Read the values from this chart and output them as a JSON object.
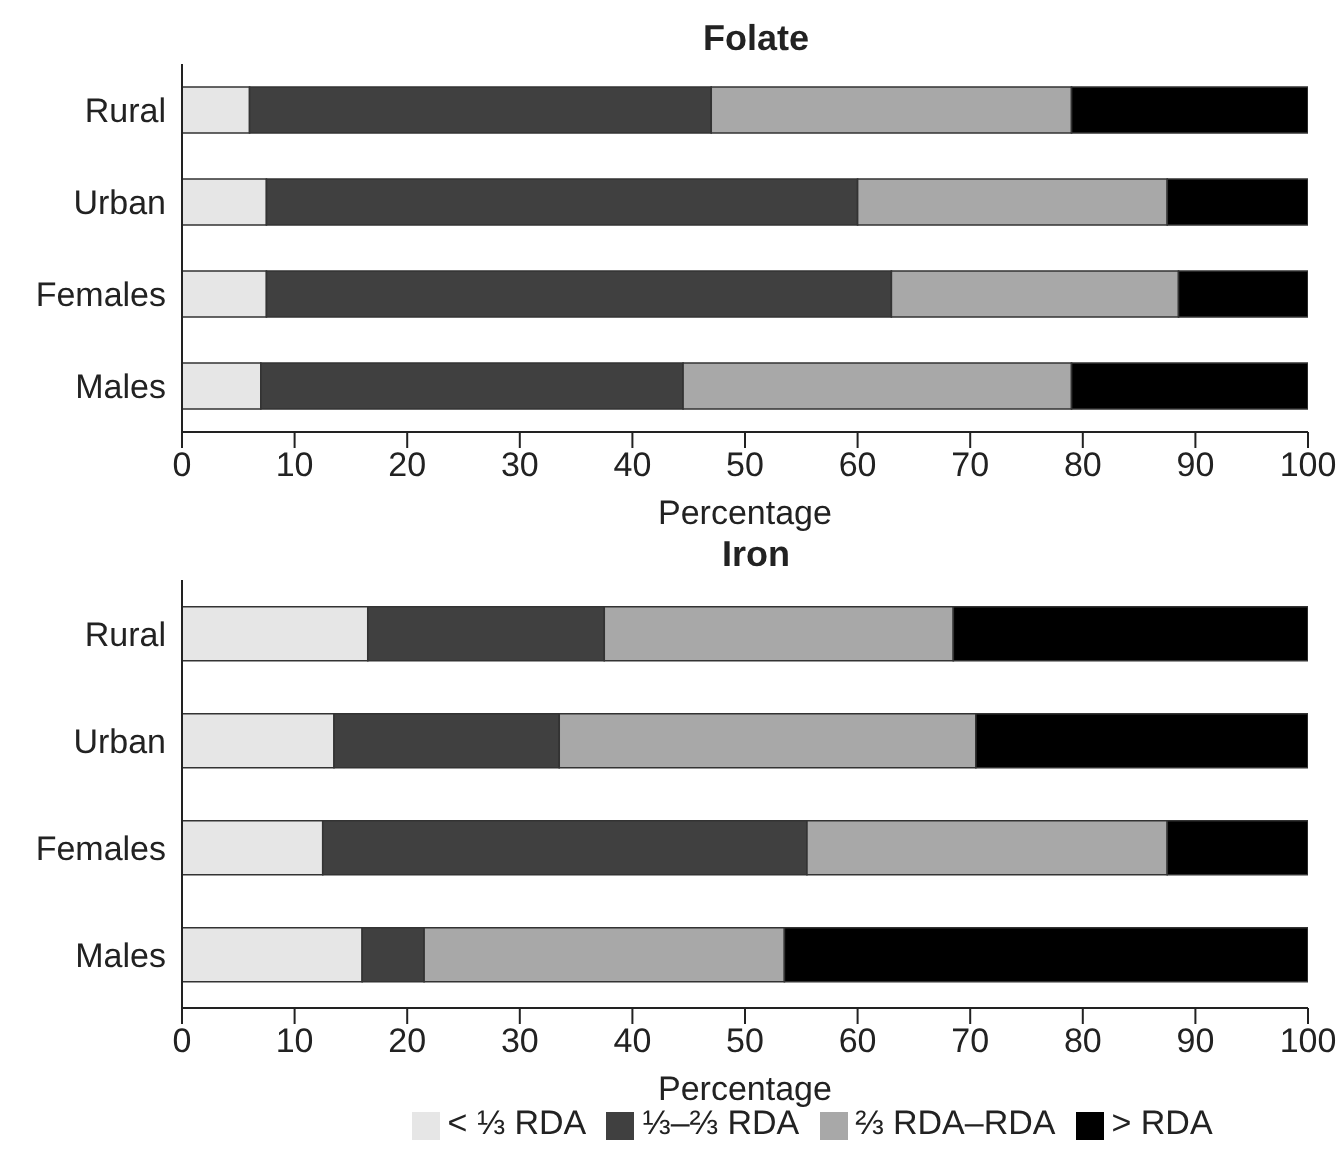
{
  "chart_data": [
    {
      "type": "bar",
      "title": "Folate",
      "xlabel": "Percentage",
      "orientation": "horizontal",
      "stacked": true,
      "categories": [
        "Rural",
        "Urban",
        "Females",
        "Males"
      ],
      "xlim": [
        0,
        100
      ],
      "xticks": [
        0,
        10,
        20,
        30,
        40,
        50,
        60,
        70,
        80,
        90,
        100
      ],
      "grid": false,
      "legend": false,
      "series": [
        {
          "color": "#e6e6e6",
          "values": [
            6,
            7.5,
            7.5,
            7
          ]
        },
        {
          "color": "#404040",
          "values": [
            41,
            52.5,
            55.5,
            37.5
          ]
        },
        {
          "color": "#a8a8a8",
          "values": [
            32,
            27.5,
            25.5,
            34.5
          ]
        },
        {
          "color": "#000000",
          "values": [
            21,
            12.5,
            11.5,
            21
          ]
        }
      ]
    },
    {
      "type": "bar",
      "title": "Iron",
      "xlabel": "Percentage",
      "orientation": "horizontal",
      "stacked": true,
      "categories": [
        "Rural",
        "Urban",
        "Females",
        "Males"
      ],
      "xlim": [
        0,
        100
      ],
      "xticks": [
        0,
        10,
        20,
        30,
        40,
        50,
        60,
        70,
        80,
        90,
        100
      ],
      "grid": false,
      "legend": "bottom",
      "series": [
        {
          "name": "< ⅓ RDA",
          "color": "#e6e6e6",
          "values": [
            16.5,
            13.5,
            12.5,
            16
          ]
        },
        {
          "name": "⅓–⅔ RDA",
          "color": "#404040",
          "values": [
            21,
            20,
            43,
            5.5
          ]
        },
        {
          "name": "⅔ RDA–RDA",
          "color": "#a8a8a8",
          "values": [
            31,
            37,
            32,
            32
          ]
        },
        {
          "name": "> RDA",
          "color": "#000000",
          "values": [
            31.5,
            29.5,
            12.5,
            46.5
          ]
        }
      ]
    }
  ]
}
